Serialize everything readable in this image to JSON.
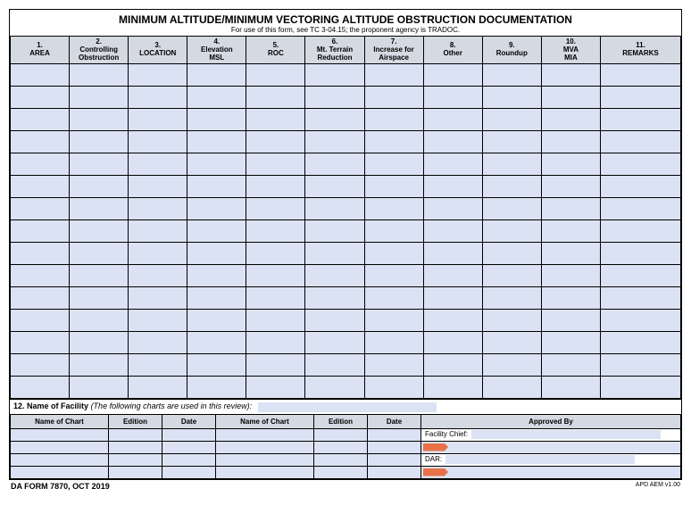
{
  "title": "MINIMUM ALTITUDE/MINIMUM VECTORING ALTITUDE OBSTRUCTION DOCUMENTATION",
  "subtitle": "For use of this form, see TC 3-04.15; the proponent agency is TRADOC.",
  "columns": [
    {
      "num": "1.",
      "label": "AREA"
    },
    {
      "num": "2.",
      "label": "Controlling Obstruction"
    },
    {
      "num": "3.",
      "label": "LOCATION"
    },
    {
      "num": "4.",
      "label": "Elevation MSL"
    },
    {
      "num": "5.",
      "label": "ROC"
    },
    {
      "num": "6.",
      "label": "Mt. Terrain Reduction"
    },
    {
      "num": "7.",
      "label": "Increase for Airspace"
    },
    {
      "num": "8.",
      "label": "Other"
    },
    {
      "num": "9.",
      "label": "Roundup"
    },
    {
      "num": "10.",
      "label": "MVA MIA"
    },
    {
      "num": "11.",
      "label": "REMARKS"
    }
  ],
  "row_count": 15,
  "section12_label": "12. Name of Facility",
  "section12_note": "(The following charts are used in this review):",
  "charts_headers": [
    "Name of Chart",
    "Edition",
    "Date",
    "Name of Chart",
    "Edition",
    "Date",
    "Approved By"
  ],
  "chart_rows": 4,
  "approved": {
    "facility_chief": "Facility Chief:",
    "dar": "DAR:"
  },
  "footer_left": "DA FORM 7870, OCT 2019",
  "footer_right": "APD AEM v1.00",
  "colors": {
    "header_bg": "#d5d9e2",
    "cell_bg": "#dbe2f3",
    "sig_tag": "#e9714a"
  }
}
